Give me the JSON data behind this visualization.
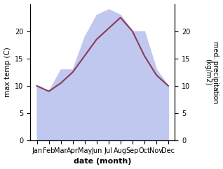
{
  "months": [
    "Jan",
    "Feb",
    "Mar",
    "Apr",
    "May",
    "Jun",
    "Jul",
    "Aug",
    "Sep",
    "Oct",
    "Nov",
    "Dec"
  ],
  "temp": [
    10.0,
    9.0,
    10.5,
    12.5,
    15.5,
    18.5,
    20.5,
    22.5,
    20.0,
    15.5,
    12.0,
    10.0
  ],
  "precip": [
    10,
    9,
    13,
    13,
    19,
    23,
    24,
    23,
    20,
    20,
    13,
    10
  ],
  "temp_color": "#8B3A5A",
  "precip_fill_color": "#c0c8f0",
  "ylabel_left": "max temp (C)",
  "ylabel_right": "med. precipitation\n(kg/m2)",
  "xlabel": "date (month)",
  "ylim_left": [
    0,
    25
  ],
  "ylim_right": [
    0,
    25
  ],
  "yticks_left": [
    0,
    5,
    10,
    15,
    20
  ],
  "yticks_right": [
    0,
    5,
    10,
    15,
    20
  ],
  "background_color": "#ffffff",
  "line_width": 1.5
}
